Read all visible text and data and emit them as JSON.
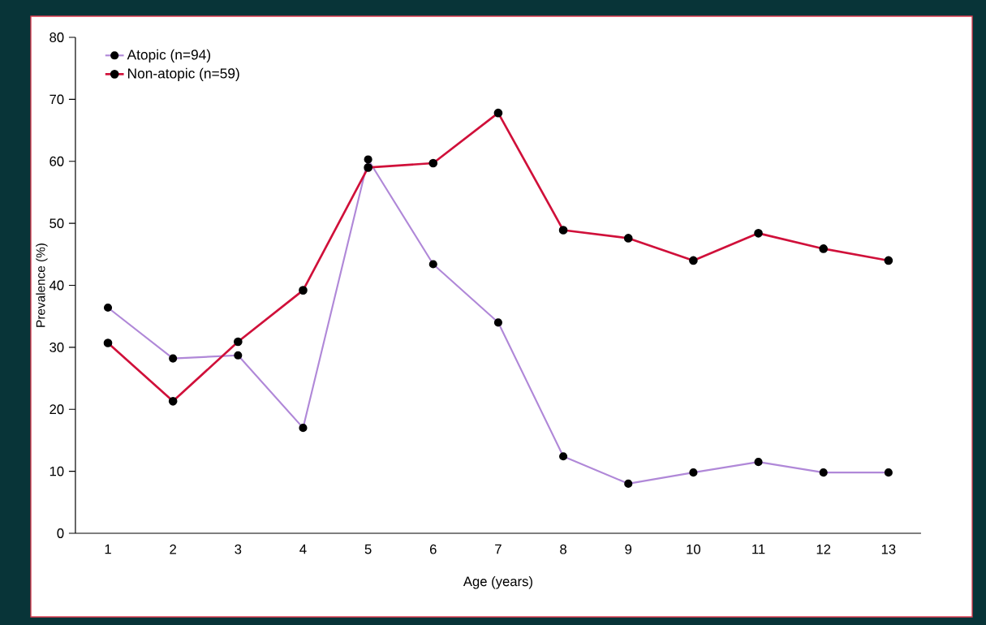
{
  "chart_data": {
    "type": "line",
    "xlabel": "Age (years)",
    "ylabel": "Prevalence (%)",
    "categories": [
      "1",
      "2",
      "3",
      "4",
      "5",
      "6",
      "7",
      "8",
      "9",
      "10",
      "11",
      "12",
      "13"
    ],
    "series": [
      {
        "name": "Atopic (n=94)",
        "color": "#b088d8",
        "values": [
          36.4,
          28.2,
          28.7,
          17.0,
          60.3,
          43.4,
          34.0,
          12.4,
          8.0,
          9.8,
          11.5,
          9.8,
          9.8
        ]
      },
      {
        "name": "Non-atopic (n=59)",
        "color": "#d0103a",
        "values": [
          30.7,
          21.3,
          30.9,
          39.2,
          59.0,
          59.7,
          67.8,
          48.9,
          47.6,
          44.0,
          48.4,
          45.9,
          44.0
        ]
      }
    ],
    "ylim": [
      0,
      80
    ],
    "yticks": [
      0,
      10,
      20,
      30,
      40,
      50,
      60,
      70,
      80
    ],
    "legend": "top left",
    "marker": "circle",
    "line_style": "solid"
  }
}
